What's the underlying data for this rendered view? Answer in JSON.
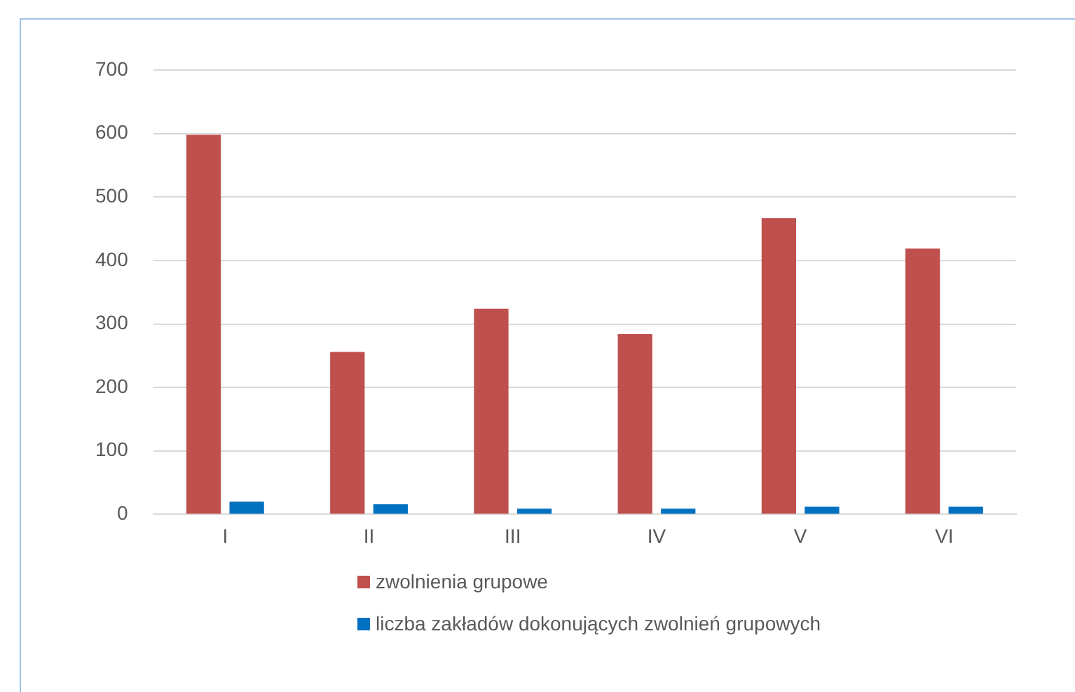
{
  "chart_data": {
    "type": "bar",
    "categories": [
      "I",
      "II",
      "III",
      "IV",
      "V",
      "VI"
    ],
    "series": [
      {
        "name": "zwolnienia grupowe",
        "color": "#c0504d",
        "values": [
          598,
          256,
          324,
          284,
          467,
          419
        ]
      },
      {
        "name": "liczba zakładów dokonujących zwolnień grupowych",
        "color": "#0070c0",
        "values": [
          20,
          16,
          9,
          9,
          12,
          12
        ]
      }
    ],
    "ylim": [
      0,
      700
    ],
    "yticks": [
      0,
      100,
      200,
      300,
      400,
      500,
      600,
      700
    ],
    "grid": "y",
    "legend": "bottom"
  }
}
